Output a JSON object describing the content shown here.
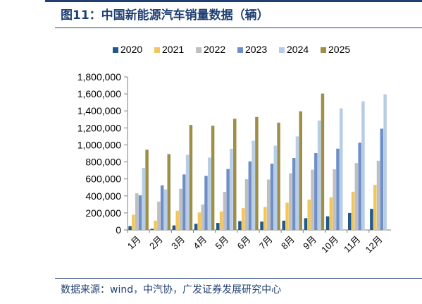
{
  "figure": {
    "title": "图11：中国新能源汽车销量数据（辆）",
    "source": "数据来源：wind，中汽协，广发证券发展研究中心"
  },
  "chart_data": {
    "type": "bar",
    "categories": [
      "1月",
      "2月",
      "3月",
      "4月",
      "5月",
      "6月",
      "7月",
      "8月",
      "9月",
      "10月",
      "11月",
      "12月"
    ],
    "ylim": [
      0,
      1800000
    ],
    "yticks": [
      0,
      200000,
      400000,
      600000,
      800000,
      1000000,
      1200000,
      1400000,
      1600000,
      1800000
    ],
    "ytick_labels": [
      "0",
      "200,000",
      "400,000",
      "600,000",
      "800,000",
      "1,000,000",
      "1,200,000",
      "1,400,000",
      "1,600,000",
      "1,800,000"
    ],
    "legend_position": "top",
    "grid": false,
    "series": [
      {
        "name": "2020",
        "color": "#1f5a8a",
        "values": [
          45000,
          14000,
          53000,
          72000,
          82000,
          104000,
          98000,
          109000,
          138000,
          160000,
          200000,
          248000
        ]
      },
      {
        "name": "2021",
        "color": "#f0c75e",
        "values": [
          179000,
          110000,
          226000,
          206000,
          217000,
          256000,
          271000,
          321000,
          357000,
          383000,
          450000,
          531000
        ]
      },
      {
        "name": "2022",
        "color": "#bfbfbf",
        "values": [
          431000,
          334000,
          484000,
          299000,
          447000,
          596000,
          593000,
          666000,
          708000,
          714000,
          786000,
          814000
        ]
      },
      {
        "name": "2023",
        "color": "#6f8fc6",
        "values": [
          408000,
          525000,
          653000,
          636000,
          717000,
          806000,
          780000,
          846000,
          904000,
          956000,
          1026000,
          1191000
        ]
      },
      {
        "name": "2024",
        "color": "#b7cde6",
        "values": [
          729000,
          477000,
          883000,
          850000,
          955000,
          1049000,
          991000,
          1100000,
          1287000,
          1430000,
          1512000,
          1595000
        ]
      },
      {
        "name": "2025",
        "color": "#9e8e48",
        "values": [
          944000,
          892000,
          1235000,
          1225000,
          1307000,
          1329000,
          1262000,
          1395000,
          1604000,
          null,
          null,
          null
        ]
      }
    ]
  }
}
